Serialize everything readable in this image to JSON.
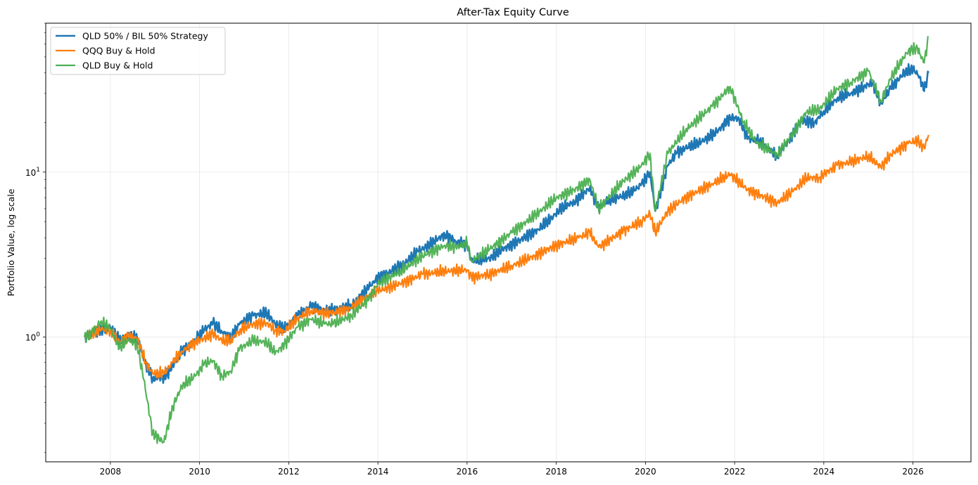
{
  "chart_data": {
    "type": "line",
    "title": "After-Tax Equity Curve",
    "xlabel": "",
    "ylabel": "Portfolio Value, log scale",
    "y_scale": "log",
    "xlim": [
      2006.55,
      2027.3
    ],
    "ylim": [
      0.175,
      80
    ],
    "grid": true,
    "legend_placement": "top-left",
    "x_ticks": [
      2008,
      2010,
      2012,
      2014,
      2016,
      2018,
      2020,
      2022,
      2024,
      2026
    ],
    "y_ticks": [
      {
        "value": 1,
        "base": "10",
        "exp": "0"
      },
      {
        "value": 10,
        "base": "10",
        "exp": "1"
      }
    ],
    "series": [
      {
        "name": "QLD 50% / BIL 50% Strategy",
        "color": "#1f77b4",
        "points": [
          [
            2007.42,
            1.0
          ],
          [
            2007.6,
            1.04
          ],
          [
            2007.8,
            1.12
          ],
          [
            2008.0,
            1.14
          ],
          [
            2008.2,
            0.96
          ],
          [
            2008.4,
            1.01
          ],
          [
            2008.6,
            0.98
          ],
          [
            2008.8,
            0.68
          ],
          [
            2008.95,
            0.56
          ],
          [
            2009.2,
            0.57
          ],
          [
            2009.4,
            0.67
          ],
          [
            2009.6,
            0.82
          ],
          [
            2009.9,
            0.95
          ],
          [
            2010.1,
            1.1
          ],
          [
            2010.3,
            1.22
          ],
          [
            2010.5,
            1.08
          ],
          [
            2010.7,
            1.0
          ],
          [
            2010.9,
            1.2
          ],
          [
            2011.2,
            1.35
          ],
          [
            2011.5,
            1.4
          ],
          [
            2011.7,
            1.2
          ],
          [
            2011.9,
            1.12
          ],
          [
            2012.2,
            1.35
          ],
          [
            2012.5,
            1.55
          ],
          [
            2012.8,
            1.45
          ],
          [
            2013.0,
            1.45
          ],
          [
            2013.4,
            1.55
          ],
          [
            2013.8,
            2.0
          ],
          [
            2014.0,
            2.3
          ],
          [
            2014.3,
            2.5
          ],
          [
            2014.6,
            2.8
          ],
          [
            2014.9,
            3.3
          ],
          [
            2015.2,
            3.7
          ],
          [
            2015.5,
            4.2
          ],
          [
            2015.75,
            3.8
          ],
          [
            2016.0,
            3.6
          ],
          [
            2016.1,
            2.9
          ],
          [
            2016.5,
            3.0
          ],
          [
            2016.8,
            3.4
          ],
          [
            2017.2,
            3.9
          ],
          [
            2017.6,
            4.5
          ],
          [
            2017.9,
            5.3
          ],
          [
            2018.1,
            6.0
          ],
          [
            2018.4,
            6.6
          ],
          [
            2018.75,
            8.0
          ],
          [
            2018.95,
            6.1
          ],
          [
            2019.2,
            6.8
          ],
          [
            2019.6,
            7.3
          ],
          [
            2019.9,
            8.3
          ],
          [
            2020.1,
            10.0
          ],
          [
            2020.22,
            5.8
          ],
          [
            2020.5,
            11.0
          ],
          [
            2020.7,
            13.0
          ],
          [
            2020.9,
            14.0
          ],
          [
            2021.2,
            15.0
          ],
          [
            2021.6,
            17.5
          ],
          [
            2021.9,
            21.5
          ],
          [
            2022.1,
            21.0
          ],
          [
            2022.3,
            16.0
          ],
          [
            2022.5,
            15.5
          ],
          [
            2022.7,
            14.5
          ],
          [
            2022.95,
            12.5
          ],
          [
            2023.2,
            15.5
          ],
          [
            2023.5,
            20.5
          ],
          [
            2023.8,
            20.0
          ],
          [
            2024.0,
            23.5
          ],
          [
            2024.3,
            28.0
          ],
          [
            2024.6,
            30.0
          ],
          [
            2024.9,
            33.0
          ],
          [
            2025.1,
            35.0
          ],
          [
            2025.28,
            26.0
          ],
          [
            2025.5,
            32.0
          ],
          [
            2025.8,
            40.0
          ],
          [
            2026.0,
            42.0
          ],
          [
            2026.15,
            38.0
          ],
          [
            2026.25,
            31.0
          ],
          [
            2026.35,
            40.0
          ]
        ]
      },
      {
        "name": "QQQ Buy & Hold",
        "color": "#ff7f0e",
        "points": [
          [
            2007.42,
            1.0
          ],
          [
            2007.6,
            1.04
          ],
          [
            2007.8,
            1.12
          ],
          [
            2008.0,
            1.1
          ],
          [
            2008.2,
            0.93
          ],
          [
            2008.4,
            1.01
          ],
          [
            2008.6,
            0.98
          ],
          [
            2008.8,
            0.7
          ],
          [
            2008.95,
            0.6
          ],
          [
            2009.2,
            0.6
          ],
          [
            2009.4,
            0.7
          ],
          [
            2009.6,
            0.82
          ],
          [
            2009.9,
            0.93
          ],
          [
            2010.1,
            0.98
          ],
          [
            2010.3,
            1.05
          ],
          [
            2010.5,
            0.95
          ],
          [
            2010.7,
            0.95
          ],
          [
            2010.9,
            1.1
          ],
          [
            2011.2,
            1.2
          ],
          [
            2011.5,
            1.22
          ],
          [
            2011.7,
            1.1
          ],
          [
            2011.9,
            1.08
          ],
          [
            2012.2,
            1.3
          ],
          [
            2012.5,
            1.45
          ],
          [
            2012.8,
            1.4
          ],
          [
            2013.0,
            1.4
          ],
          [
            2013.4,
            1.5
          ],
          [
            2013.8,
            1.8
          ],
          [
            2014.0,
            1.9
          ],
          [
            2014.5,
            2.1
          ],
          [
            2015.0,
            2.4
          ],
          [
            2015.5,
            2.5
          ],
          [
            2016.0,
            2.55
          ],
          [
            2016.1,
            2.3
          ],
          [
            2016.5,
            2.4
          ],
          [
            2017.0,
            2.7
          ],
          [
            2017.5,
            3.1
          ],
          [
            2018.0,
            3.6
          ],
          [
            2018.5,
            4.0
          ],
          [
            2018.75,
            4.3
          ],
          [
            2018.95,
            3.5
          ],
          [
            2019.5,
            4.4
          ],
          [
            2019.9,
            5.0
          ],
          [
            2020.1,
            5.6
          ],
          [
            2020.22,
            4.3
          ],
          [
            2020.5,
            5.8
          ],
          [
            2020.9,
            7.0
          ],
          [
            2021.5,
            8.5
          ],
          [
            2021.9,
            9.7
          ],
          [
            2022.3,
            7.8
          ],
          [
            2022.6,
            7.2
          ],
          [
            2022.95,
            6.5
          ],
          [
            2023.3,
            7.6
          ],
          [
            2023.6,
            9.2
          ],
          [
            2023.9,
            9.3
          ],
          [
            2024.3,
            11.0
          ],
          [
            2024.6,
            11.5
          ],
          [
            2025.0,
            12.5
          ],
          [
            2025.28,
            10.7
          ],
          [
            2025.5,
            12.8
          ],
          [
            2025.9,
            15.0
          ],
          [
            2026.1,
            15.5
          ],
          [
            2026.25,
            14.0
          ],
          [
            2026.35,
            16.8
          ]
        ]
      },
      {
        "name": "QLD Buy & Hold",
        "color": "#4caf50",
        "points": [
          [
            2007.42,
            1.0
          ],
          [
            2007.55,
            1.05
          ],
          [
            2007.8,
            1.25
          ],
          [
            2008.0,
            1.12
          ],
          [
            2008.2,
            0.85
          ],
          [
            2008.4,
            0.97
          ],
          [
            2008.6,
            0.9
          ],
          [
            2008.75,
            0.55
          ],
          [
            2008.95,
            0.26
          ],
          [
            2009.2,
            0.23
          ],
          [
            2009.4,
            0.38
          ],
          [
            2009.6,
            0.5
          ],
          [
            2009.9,
            0.58
          ],
          [
            2010.1,
            0.68
          ],
          [
            2010.3,
            0.72
          ],
          [
            2010.5,
            0.58
          ],
          [
            2010.7,
            0.62
          ],
          [
            2010.9,
            0.85
          ],
          [
            2011.2,
            0.95
          ],
          [
            2011.5,
            0.93
          ],
          [
            2011.7,
            0.8
          ],
          [
            2011.9,
            0.9
          ],
          [
            2012.2,
            1.15
          ],
          [
            2012.5,
            1.28
          ],
          [
            2012.8,
            1.2
          ],
          [
            2013.0,
            1.2
          ],
          [
            2013.4,
            1.35
          ],
          [
            2013.8,
            1.7
          ],
          [
            2014.0,
            2.1
          ],
          [
            2014.5,
            2.5
          ],
          [
            2015.0,
            3.1
          ],
          [
            2015.5,
            3.6
          ],
          [
            2015.75,
            3.5
          ],
          [
            2016.0,
            3.7
          ],
          [
            2016.1,
            2.9
          ],
          [
            2016.5,
            3.4
          ],
          [
            2017.0,
            4.3
          ],
          [
            2017.5,
            5.4
          ],
          [
            2018.0,
            7.0
          ],
          [
            2018.4,
            7.8
          ],
          [
            2018.75,
            9.0
          ],
          [
            2018.95,
            6.0
          ],
          [
            2019.5,
            8.8
          ],
          [
            2019.9,
            10.8
          ],
          [
            2020.1,
            13.0
          ],
          [
            2020.22,
            5.8
          ],
          [
            2020.5,
            13.0
          ],
          [
            2020.9,
            18.0
          ],
          [
            2021.5,
            25.0
          ],
          [
            2021.9,
            33.0
          ],
          [
            2022.2,
            20.0
          ],
          [
            2022.5,
            15.0
          ],
          [
            2022.95,
            12.8
          ],
          [
            2023.3,
            17.0
          ],
          [
            2023.6,
            23.0
          ],
          [
            2023.9,
            24.0
          ],
          [
            2024.3,
            32.0
          ],
          [
            2024.6,
            35.0
          ],
          [
            2025.0,
            41.0
          ],
          [
            2025.28,
            27.0
          ],
          [
            2025.5,
            37.0
          ],
          [
            2025.9,
            55.0
          ],
          [
            2026.1,
            56.0
          ],
          [
            2026.25,
            46.0
          ],
          [
            2026.35,
            66.0
          ]
        ]
      }
    ]
  }
}
